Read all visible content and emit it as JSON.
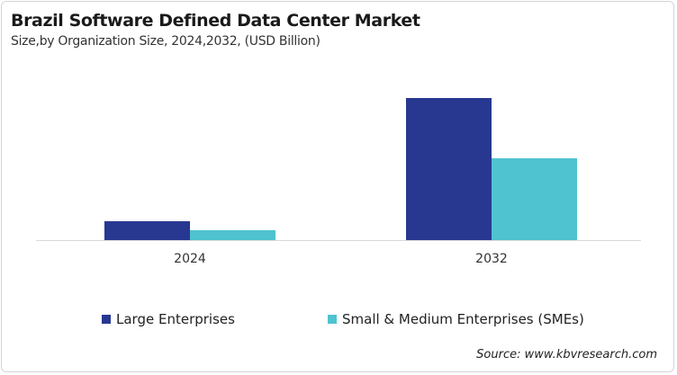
{
  "chart_data": {
    "type": "bar",
    "title": "Brazil Software Defined Data Center Market",
    "subtitle": "Size,by Organization Size, 2024,2032, (USD Billion)",
    "categories": [
      "2024",
      "2032"
    ],
    "series": [
      {
        "name": "Large Enterprises",
        "values": [
          0.21,
          1.58
        ],
        "color": "#283891"
      },
      {
        "name": "Small & Medium Enterprises (SMEs)",
        "values": [
          0.11,
          0.91
        ],
        "color": "#4fc3cf"
      }
    ],
    "ylim": [
      0,
      1.86
    ],
    "grid": false,
    "legend": "bottom",
    "source": "Source: www.kbvresearch.com"
  }
}
